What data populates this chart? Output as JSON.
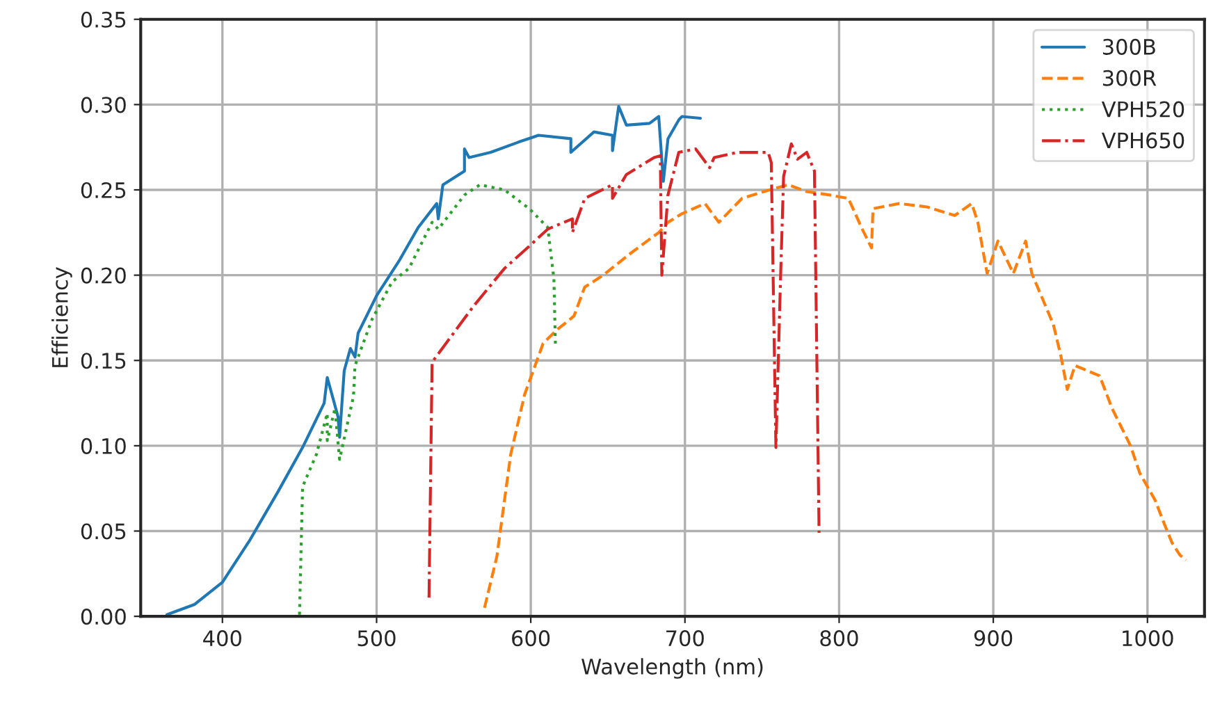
{
  "chart_data": {
    "type": "line",
    "xlabel": "Wavelength (nm)",
    "ylabel": "Efficiency",
    "xlim": [
      347,
      1037
    ],
    "ylim": [
      0,
      0.35
    ],
    "xticks": [
      400,
      500,
      600,
      700,
      800,
      900,
      1000
    ],
    "yticks": [
      {
        "value": 0,
        "label": "0.00"
      },
      {
        "value": 0.05,
        "label": "0.05"
      },
      {
        "value": 0.1,
        "label": "0.10"
      },
      {
        "value": 0.15,
        "label": "0.15"
      },
      {
        "value": 0.2,
        "label": "0.20"
      },
      {
        "value": 0.25,
        "label": "0.25"
      },
      {
        "value": 0.3,
        "label": "0.30"
      },
      {
        "value": 0.35,
        "label": "0.35"
      }
    ],
    "grid": true,
    "legend": "top right",
    "marker": "none",
    "series": [
      {
        "name": "300B",
        "color": "#1f77b4",
        "line_style": "solid",
        "x": [
          364,
          382,
          400,
          418,
          436,
          452,
          466,
          468,
          475,
          476,
          479,
          483,
          486,
          488,
          500,
          515,
          527,
          539,
          540,
          543,
          557,
          557,
          560,
          574,
          592,
          605,
          626,
          626,
          641,
          653,
          653,
          657,
          662,
          677,
          683,
          686,
          689,
          696,
          698,
          710
        ],
        "values": [
          0.001,
          0.007,
          0.02,
          0.045,
          0.073,
          0.099,
          0.125,
          0.14,
          0.117,
          0.105,
          0.144,
          0.157,
          0.152,
          0.166,
          0.188,
          0.209,
          0.228,
          0.242,
          0.233,
          0.253,
          0.261,
          0.274,
          0.269,
          0.272,
          0.278,
          0.282,
          0.28,
          0.272,
          0.284,
          0.282,
          0.273,
          0.299,
          0.288,
          0.289,
          0.293,
          0.255,
          0.28,
          0.291,
          0.293,
          0.292
        ]
      },
      {
        "name": "300R",
        "color": "#ff7f0e",
        "line_style": "dashed",
        "x": [
          570,
          578,
          587,
          596,
          608,
          617,
          628,
          635,
          647,
          665,
          683,
          689,
          698,
          713,
          722,
          737,
          755,
          767,
          779,
          794,
          806,
          815,
          821,
          822,
          839,
          857,
          875,
          886,
          890,
          896,
          903,
          913,
          921,
          925,
          939,
          944,
          948,
          953,
          969,
          977,
          989,
          995,
          1005,
          1011,
          1016,
          1021,
          1025
        ],
        "values": [
          0.005,
          0.035,
          0.095,
          0.13,
          0.16,
          0.168,
          0.176,
          0.193,
          0.2,
          0.213,
          0.225,
          0.231,
          0.236,
          0.242,
          0.231,
          0.245,
          0.25,
          0.253,
          0.249,
          0.247,
          0.245,
          0.227,
          0.216,
          0.239,
          0.242,
          0.24,
          0.235,
          0.242,
          0.231,
          0.201,
          0.22,
          0.201,
          0.22,
          0.201,
          0.171,
          0.152,
          0.133,
          0.147,
          0.141,
          0.122,
          0.1,
          0.084,
          0.068,
          0.054,
          0.043,
          0.036,
          0.033
        ]
      },
      {
        "name": "VPH520",
        "color": "#2ca02c",
        "line_style": "dotted",
        "x": [
          450,
          452,
          461,
          468,
          468,
          473,
          476,
          485,
          486,
          497,
          510,
          521,
          536,
          540,
          557,
          567,
          583,
          599,
          611,
          615,
          616
        ],
        "values": [
          0.001,
          0.076,
          0.095,
          0.119,
          0.103,
          0.122,
          0.092,
          0.129,
          0.147,
          0.174,
          0.196,
          0.204,
          0.231,
          0.227,
          0.247,
          0.253,
          0.25,
          0.239,
          0.228,
          0.198,
          0.159
        ]
      },
      {
        "name": "VPH650",
        "color": "#d62728",
        "line_style": "dashdot",
        "x": [
          534,
          536,
          545,
          563,
          583,
          599,
          611,
          627,
          627,
          635,
          653,
          653,
          662,
          680,
          684,
          685,
          689,
          696,
          707,
          716,
          719,
          734,
          754,
          756,
          759,
          762,
          764,
          769,
          773,
          779,
          784,
          787
        ],
        "values": [
          0.011,
          0.149,
          0.16,
          0.182,
          0.204,
          0.217,
          0.227,
          0.233,
          0.225,
          0.245,
          0.253,
          0.245,
          0.259,
          0.269,
          0.27,
          0.2,
          0.247,
          0.272,
          0.274,
          0.263,
          0.269,
          0.272,
          0.272,
          0.266,
          0.099,
          0.198,
          0.258,
          0.277,
          0.268,
          0.272,
          0.261,
          0.049
        ]
      }
    ]
  }
}
